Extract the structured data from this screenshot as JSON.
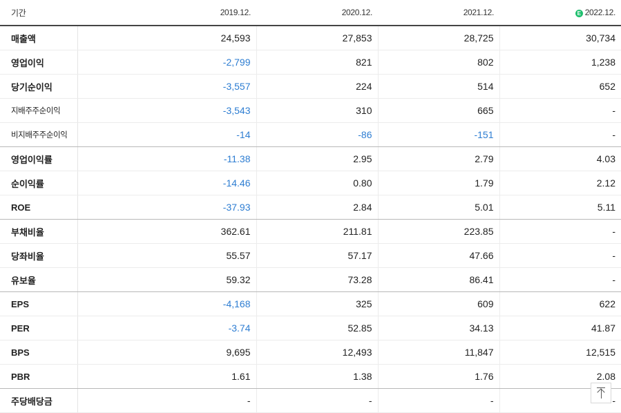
{
  "header": {
    "label": "기간",
    "periods": [
      "2019.12.",
      "2020.12.",
      "2021.12.",
      "2022.12."
    ],
    "estimate_badge": "E"
  },
  "rows": [
    {
      "label": "매출액",
      "values": [
        "24,593",
        "27,853",
        "28,725",
        "30,734"
      ]
    },
    {
      "label": "영업이익",
      "values": [
        "-2,799",
        "821",
        "802",
        "1,238"
      ]
    },
    {
      "label": "당기순이익",
      "values": [
        "-3,557",
        "224",
        "514",
        "652"
      ]
    },
    {
      "label": "지배주주순이익",
      "values": [
        "-3,543",
        "310",
        "665",
        "-"
      ]
    },
    {
      "label": "비지배주주순이익",
      "values": [
        "-14",
        "-86",
        "-151",
        "-"
      ]
    },
    {
      "label": "영업이익률",
      "values": [
        "-11.38",
        "2.95",
        "2.79",
        "4.03"
      ]
    },
    {
      "label": "순이익률",
      "values": [
        "-14.46",
        "0.80",
        "1.79",
        "2.12"
      ]
    },
    {
      "label": "ROE",
      "values": [
        "-37.93",
        "2.84",
        "5.01",
        "5.11"
      ]
    },
    {
      "label": "부채비율",
      "values": [
        "362.61",
        "211.81",
        "223.85",
        "-"
      ]
    },
    {
      "label": "당좌비율",
      "values": [
        "55.57",
        "57.17",
        "47.66",
        "-"
      ]
    },
    {
      "label": "유보율",
      "values": [
        "59.32",
        "73.28",
        "86.41",
        "-"
      ]
    },
    {
      "label": "EPS",
      "values": [
        "-4,168",
        "325",
        "609",
        "622"
      ]
    },
    {
      "label": "PER",
      "values": [
        "-3.74",
        "52.85",
        "34.13",
        "41.87"
      ]
    },
    {
      "label": "BPS",
      "values": [
        "9,695",
        "12,493",
        "11,847",
        "12,515"
      ]
    },
    {
      "label": "PBR",
      "values": [
        "1.61",
        "1.38",
        "1.76",
        "2.08"
      ]
    },
    {
      "label": "주당배당금",
      "values": [
        "-",
        "-",
        "-",
        "-"
      ]
    }
  ],
  "colors": {
    "negative": "#2d7dd2",
    "estimate": "#1fbf6e"
  }
}
